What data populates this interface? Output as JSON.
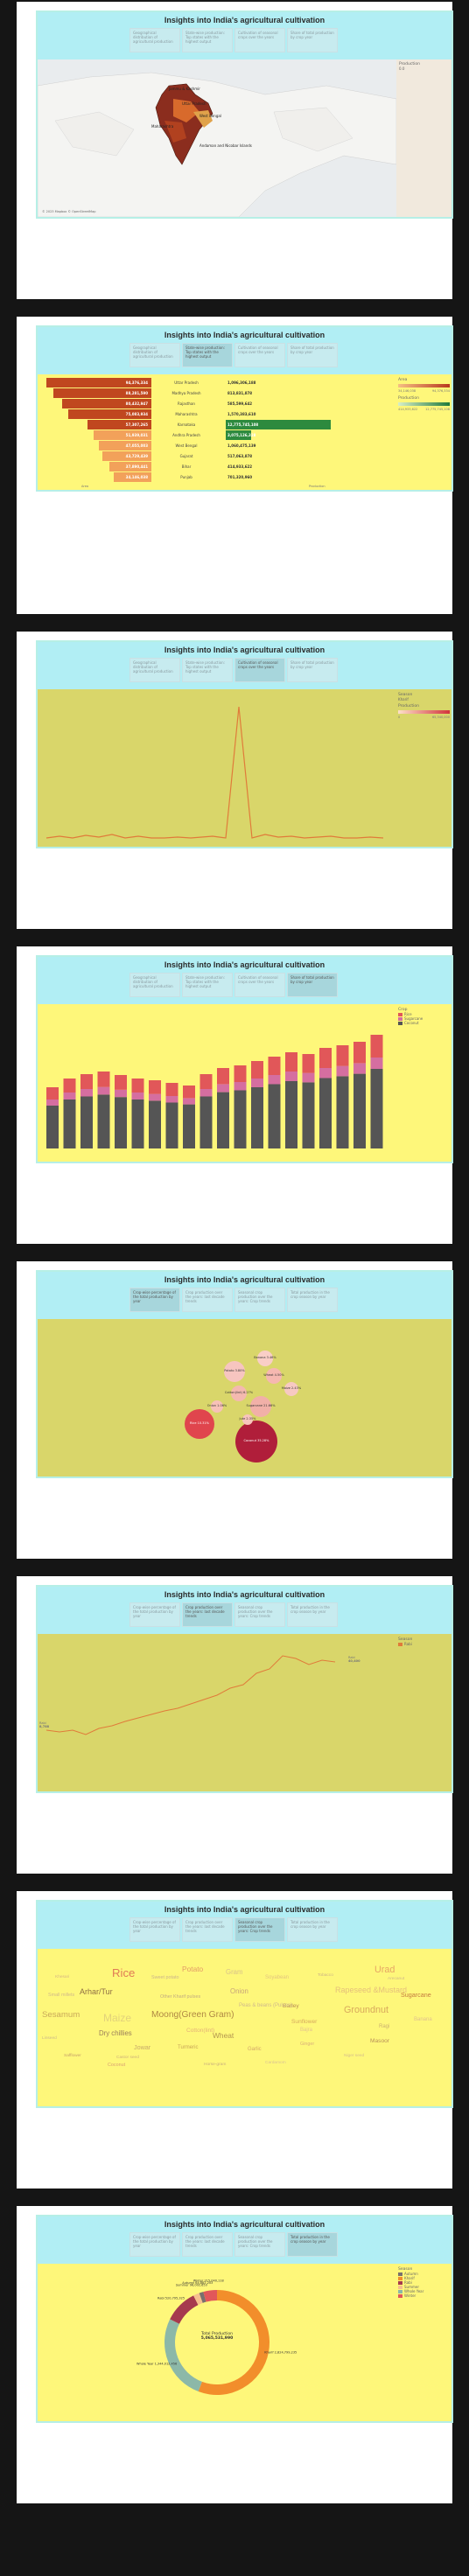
{
  "app_title": "Insights into India's agricultural cultivation",
  "tabs": [
    {
      "label": "Geographical distribution of agricultural production"
    },
    {
      "label": "State-wise production: Top states with the highest output"
    },
    {
      "label": "Cultivation of seasonal crops over the years"
    },
    {
      "label": "Share of total production by crop year"
    }
  ],
  "tabs_alt": [
    {
      "label": "Crop-wise percentage of the total production by year"
    },
    {
      "label": "Crop production over the years: last decade trends"
    },
    {
      "label": "Seasonal crop production over the years: Crop trends"
    },
    {
      "label": "Total production in the crop season by year"
    }
  ],
  "map": {
    "state_labels": [
      "Jammu & Kashmir",
      "Uttar Pradesh",
      "West Bengal",
      "Maharashtra",
      "Andaman and Nicobar Islands"
    ],
    "legend_title": "Production",
    "legend_value": "0.0",
    "copyright": "© 2023 Mapbox © OpenStreetMap"
  },
  "state_chart": {
    "states": [
      {
        "name": "Uttar Pradesh",
        "area": "94,376,334",
        "production": "1,096,306,188"
      },
      {
        "name": "Madhya Pradesh",
        "area": "88,281,590",
        "production": "813,831,878"
      },
      {
        "name": "Rajasthan",
        "area": "80,432,947",
        "production": "585,599,642"
      },
      {
        "name": "Maharashtra",
        "area": "75,083,934",
        "production": "1,570,383,610"
      },
      {
        "name": "Karnataka",
        "area": "57,307,265",
        "production": "12,775,745,108"
      },
      {
        "name": "Andhra Pradesh",
        "area": "51,939,031",
        "production": "3,075,126,328"
      },
      {
        "name": "West Bengal",
        "area": "47,055,003",
        "production": "1,060,475,139"
      },
      {
        "name": "Gujarat",
        "area": "43,729,439",
        "production": "517,063,878"
      },
      {
        "name": "Bihar",
        "area": "37,890,441",
        "production": "414,933,622"
      },
      {
        "name": "Punjab",
        "area": "34,146,038",
        "production": "701,320,960"
      }
    ],
    "area_axis": "Area",
    "production_axis": "Production",
    "legend_area_title": "Area",
    "legend_area_min": "34,146,038",
    "legend_area_max": "94,376,334",
    "legend_prod_title": "Production",
    "legend_prod_min": "414,933,622",
    "legend_prod_max": "12,775,745,108"
  },
  "season_chart": {
    "legend_title": "Season",
    "legend_value": "Kharif",
    "legend_prod_title": "Production",
    "legend_prod_min": "0",
    "legend_prod_max": "65,340,000"
  },
  "year_chart": {
    "legend_title": "Crop",
    "legend_items": [
      "Rice",
      "Sugarcane",
      "Coconut"
    ]
  },
  "bubble_chart": {
    "bubbles": [
      {
        "name": "Coconut",
        "value": "35.28%"
      },
      {
        "name": "Rice",
        "value": "10.31%"
      },
      {
        "name": "Sugarcane",
        "value": "21.66%"
      },
      {
        "name": "Cotton(lint)",
        "value": "6.27%"
      },
      {
        "name": "Potato",
        "value": "3.80%"
      },
      {
        "name": "Wheat",
        "value": "4.50%"
      },
      {
        "name": "Maize",
        "value": "2.43%"
      },
      {
        "name": "Banana",
        "value": "3.46%"
      },
      {
        "name": "Onion",
        "value": "1.06%"
      },
      {
        "name": "Jute",
        "value": "2.35%"
      }
    ]
  },
  "line_chart": {
    "legend_title": "Season",
    "legend_value": "Rabi",
    "start_label": "Rabi",
    "start_value": "8,788",
    "peak_label": "Rabi",
    "peak_value": "46,658",
    "end_label": "Rabi",
    "end_value": "40,400"
  },
  "word_cloud": {
    "words": [
      {
        "text": "Rice",
        "size": 22,
        "color": "#e07b56"
      },
      {
        "text": "Potato",
        "size": 14,
        "color": "#e39a66"
      },
      {
        "text": "Urad",
        "size": 18,
        "color": "#e6a664"
      },
      {
        "text": "Sugarcane",
        "size": 12,
        "color": "#c47a3f"
      },
      {
        "text": "Sesamum",
        "size": 16,
        "color": "#c9a95a"
      },
      {
        "text": "Maize",
        "size": 20,
        "color": "#e2d27a"
      },
      {
        "text": "Moong(Green Gram)",
        "size": 17,
        "color": "#b08844"
      },
      {
        "text": "Groundnut",
        "size": 18,
        "color": "#d8a95c"
      },
      {
        "text": "Arhar/Tur",
        "size": 15,
        "color": "#8f6f44"
      },
      {
        "text": "Onion",
        "size": 13,
        "color": "#c7a47a"
      },
      {
        "text": "Rapeseed &Mustard",
        "size": 15,
        "color": "#e5c07a"
      },
      {
        "text": "Dry chillies",
        "size": 13,
        "color": "#9a7e5a"
      },
      {
        "text": "Wheat",
        "size": 14,
        "color": "#b3954f"
      },
      {
        "text": "Barley",
        "size": 11,
        "color": "#b98e55"
      },
      {
        "text": "Sunflower",
        "size": 11,
        "color": "#d6a95e"
      },
      {
        "text": "Jowar",
        "size": 12,
        "color": "#c7aa6a"
      },
      {
        "text": "Cotton(lint)",
        "size": 11,
        "color": "#e4b277"
      },
      {
        "text": "Turmeric",
        "size": 10,
        "color": "#c8a657"
      },
      {
        "text": "Garlic",
        "size": 10,
        "color": "#d4a76a"
      },
      {
        "text": "Bajra",
        "size": 10,
        "color": "#e3c38f"
      },
      {
        "text": "Ragi",
        "size": 10,
        "color": "#cbb070"
      },
      {
        "text": "Gram",
        "size": 13,
        "color": "#d8c28a"
      },
      {
        "text": "Soyabean",
        "size": 10,
        "color": "#e3c57f"
      },
      {
        "text": "Banana",
        "size": 10,
        "color": "#e1c18f"
      },
      {
        "text": "Coconut",
        "size": 9,
        "color": "#d9a073"
      },
      {
        "text": "Linseed",
        "size": 8,
        "color": "#cbb88a"
      },
      {
        "text": "Small millets",
        "size": 9,
        "color": "#d1b98a"
      },
      {
        "text": "Masoor",
        "size": 11,
        "color": "#b8915a"
      },
      {
        "text": "Ginger",
        "size": 9,
        "color": "#d9b07a"
      },
      {
        "text": "Castor seed",
        "size": 8,
        "color": "#ceb27a"
      },
      {
        "text": "Khesari",
        "size": 8,
        "color": "#d6b584"
      },
      {
        "text": "Safflower",
        "size": 8,
        "color": "#c7a26a"
      },
      {
        "text": "Sweet potato",
        "size": 9,
        "color": "#cbb48c"
      },
      {
        "text": "Peas & beans (Pulses)",
        "size": 10,
        "color": "#d0b98c"
      },
      {
        "text": "Other Kharif pulses",
        "size": 9,
        "color": "#c2ab80"
      },
      {
        "text": "Niger seed",
        "size": 8,
        "color": "#d6be8c"
      },
      {
        "text": "Horse-gram",
        "size": 8,
        "color": "#c8ae7e"
      },
      {
        "text": "Cardamom",
        "size": 8,
        "color": "#d9c294"
      },
      {
        "text": "Tobacco",
        "size": 8,
        "color": "#ccb384"
      },
      {
        "text": "Arecanut",
        "size": 8,
        "color": "#d0b98a"
      }
    ]
  },
  "donut_chart": {
    "center_label": "Total Production",
    "center_value": "5,065,531,990",
    "segments": [
      {
        "name": "Kharif",
        "value": "2,824,799,235",
        "color": "#f28e2b",
        "pct": 55.8
      },
      {
        "name": "Whole Year",
        "value": "1,344,012,456",
        "color": "#8cb8a8",
        "pct": 26.5
      },
      {
        "name": "Rabi",
        "value": "520,795,325",
        "color": "#a63a4e",
        "pct": 10.3
      },
      {
        "name": "Summer",
        "value": "96,002,653",
        "color": "#f6c08e",
        "pct": 1.9
      },
      {
        "name": "Autumn",
        "value": "64,882,203",
        "color": "#79706e",
        "pct": 1.3
      },
      {
        "name": "Winter",
        "value": "215,040,118",
        "color": "#e1575a",
        "pct": 4.2
      }
    ],
    "legend_title": "Season",
    "legend_items": [
      "Autumn",
      "Kharif",
      "Rabi",
      "Summer",
      "Whole Year",
      "Winter"
    ]
  }
}
